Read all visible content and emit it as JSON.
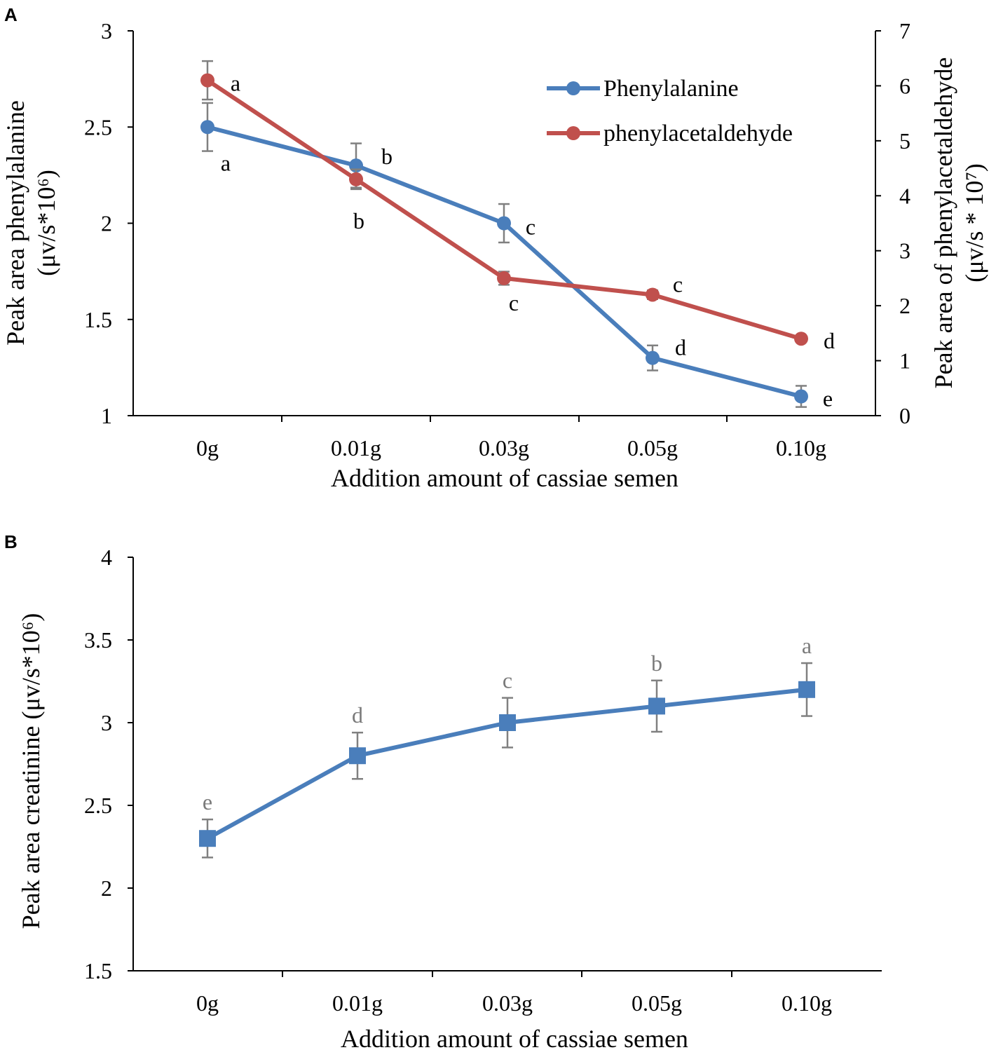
{
  "chart_data": [
    {
      "panel": "A",
      "type": "line",
      "categories": [
        "0g",
        "0.01g",
        "0.03g",
        "0.05g",
        "0.10g"
      ],
      "xlabel": "Addition amount of cassiae semen",
      "ylabel_left": "Peak area phenylalanine",
      "ylabel_left_unit": "(μv/s*10⁶)",
      "ylabel_right": "Peak area of phenylacetaldehyde",
      "ylabel_right_unit": "(μv/s * 10⁷)",
      "ylim_left": [
        1,
        3
      ],
      "yticks_left": [
        "1",
        "1.5",
        "2",
        "2.5",
        "3"
      ],
      "ylim_right": [
        0,
        7
      ],
      "yticks_right": [
        "0",
        "1",
        "2",
        "3",
        "4",
        "5",
        "6",
        "7"
      ],
      "legend_position": "top-right",
      "series": [
        {
          "name": "Phenylalanine",
          "axis": "left",
          "color": "#4a7ebb",
          "values": [
            2.5,
            2.3,
            2.0,
            1.3,
            1.1
          ],
          "errors": [
            0.125,
            0.115,
            0.1,
            0.065,
            0.055
          ],
          "letters": [
            "a",
            "b",
            "c",
            "d",
            "e"
          ]
        },
        {
          "name": "phenylacetaldehyde",
          "axis": "right",
          "color": "#c0504d",
          "values": [
            6.1,
            4.3,
            2.5,
            2.2,
            1.4
          ],
          "errors": [
            0.35,
            0.18,
            0.12,
            0.08,
            0.05
          ],
          "letters": [
            "a",
            "b",
            "c",
            "c",
            "d"
          ]
        }
      ]
    },
    {
      "panel": "B",
      "type": "line",
      "categories": [
        "0g",
        "0.01g",
        "0.03g",
        "0.05g",
        "0.10g"
      ],
      "xlabel": "Addition amount of cassiae semen",
      "ylabel": "Peak area creatinine (μv/s*10⁶)",
      "ylim": [
        1.5,
        4
      ],
      "yticks": [
        "1.5",
        "2",
        "2.5",
        "3",
        "3.5",
        "4"
      ],
      "series": [
        {
          "name": "Creatinine",
          "color": "#4a7ebb",
          "values": [
            2.3,
            2.8,
            3.0,
            3.1,
            3.2
          ],
          "errors": [
            0.115,
            0.14,
            0.15,
            0.155,
            0.16
          ],
          "letters": [
            "e",
            "d",
            "c",
            "b",
            "a"
          ]
        }
      ]
    }
  ]
}
